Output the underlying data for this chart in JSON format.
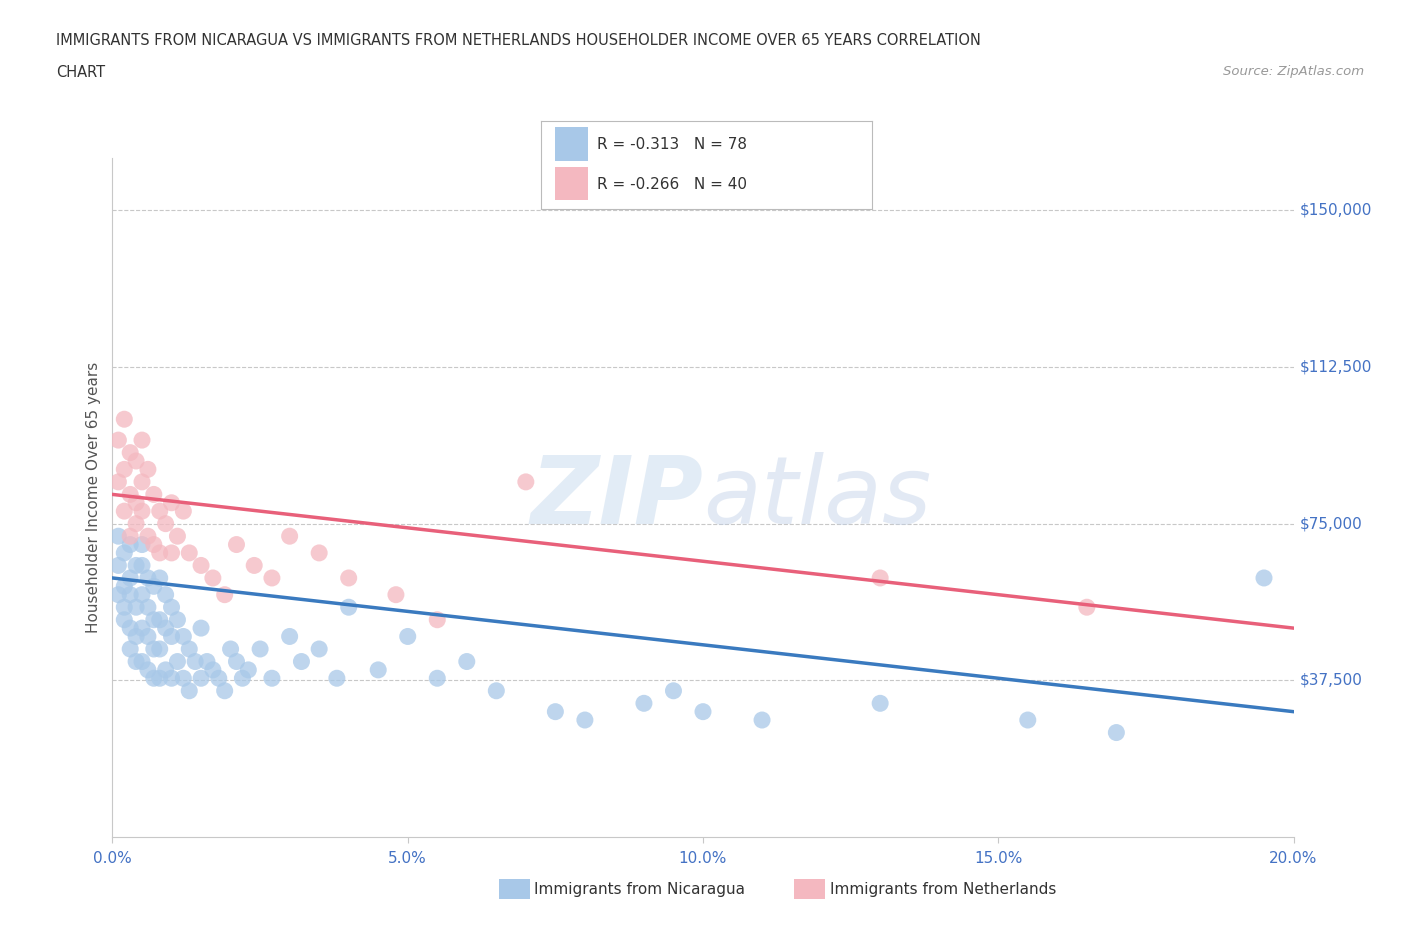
{
  "title_line1": "IMMIGRANTS FROM NICARAGUA VS IMMIGRANTS FROM NETHERLANDS HOUSEHOLDER INCOME OVER 65 YEARS CORRELATION",
  "title_line2": "CHART",
  "source_text": "Source: ZipAtlas.com",
  "ylabel": "Householder Income Over 65 years",
  "x_min": 0.0,
  "x_max": 0.2,
  "y_min": 0,
  "y_max": 162500,
  "y_ticks": [
    0,
    37500,
    75000,
    112500,
    150000
  ],
  "y_tick_labels": [
    "",
    "$37,500",
    "$75,000",
    "$112,500",
    "$150,000"
  ],
  "x_tick_labels": [
    "0.0%",
    "5.0%",
    "10.0%",
    "15.0%",
    "20.0%"
  ],
  "x_ticks": [
    0.0,
    0.05,
    0.1,
    0.15,
    0.2
  ],
  "nicaragua_color": "#a8c8e8",
  "netherlands_color": "#f4b8c0",
  "nicaragua_R": -0.313,
  "nicaragua_N": 78,
  "netherlands_R": -0.266,
  "netherlands_N": 40,
  "nicaragua_line_color": "#3a7abf",
  "netherlands_line_color": "#e8607a",
  "watermark": "ZIPatlas",
  "background_color": "#ffffff",
  "grid_color": "#c8c8c8",
  "tick_label_color": "#4472c4",
  "nicaragua_line_y0": 62000,
  "nicaragua_line_y1": 30000,
  "netherlands_line_y0": 82000,
  "netherlands_line_y1": 50000,
  "nicaragua_scatter_x": [
    0.001,
    0.001,
    0.001,
    0.002,
    0.002,
    0.002,
    0.002,
    0.003,
    0.003,
    0.003,
    0.003,
    0.003,
    0.004,
    0.004,
    0.004,
    0.004,
    0.005,
    0.005,
    0.005,
    0.005,
    0.005,
    0.006,
    0.006,
    0.006,
    0.006,
    0.007,
    0.007,
    0.007,
    0.007,
    0.008,
    0.008,
    0.008,
    0.008,
    0.009,
    0.009,
    0.009,
    0.01,
    0.01,
    0.01,
    0.011,
    0.011,
    0.012,
    0.012,
    0.013,
    0.013,
    0.014,
    0.015,
    0.015,
    0.016,
    0.017,
    0.018,
    0.019,
    0.02,
    0.021,
    0.022,
    0.023,
    0.025,
    0.027,
    0.03,
    0.032,
    0.035,
    0.038,
    0.04,
    0.045,
    0.05,
    0.055,
    0.06,
    0.065,
    0.075,
    0.08,
    0.09,
    0.095,
    0.1,
    0.11,
    0.13,
    0.155,
    0.17,
    0.195
  ],
  "nicaragua_scatter_y": [
    58000,
    65000,
    72000,
    52000,
    60000,
    68000,
    55000,
    50000,
    62000,
    70000,
    45000,
    58000,
    48000,
    55000,
    65000,
    42000,
    58000,
    50000,
    65000,
    42000,
    70000,
    55000,
    62000,
    48000,
    40000,
    52000,
    60000,
    45000,
    38000,
    52000,
    62000,
    45000,
    38000,
    50000,
    58000,
    40000,
    55000,
    48000,
    38000,
    52000,
    42000,
    48000,
    38000,
    45000,
    35000,
    42000,
    38000,
    50000,
    42000,
    40000,
    38000,
    35000,
    45000,
    42000,
    38000,
    40000,
    45000,
    38000,
    48000,
    42000,
    45000,
    38000,
    55000,
    40000,
    48000,
    38000,
    42000,
    35000,
    30000,
    28000,
    32000,
    35000,
    30000,
    28000,
    32000,
    28000,
    25000,
    62000
  ],
  "netherlands_scatter_x": [
    0.001,
    0.001,
    0.002,
    0.002,
    0.002,
    0.003,
    0.003,
    0.003,
    0.004,
    0.004,
    0.004,
    0.005,
    0.005,
    0.005,
    0.006,
    0.006,
    0.007,
    0.007,
    0.008,
    0.008,
    0.009,
    0.01,
    0.01,
    0.011,
    0.012,
    0.013,
    0.015,
    0.017,
    0.019,
    0.021,
    0.024,
    0.027,
    0.03,
    0.035,
    0.04,
    0.048,
    0.055,
    0.07,
    0.13,
    0.165
  ],
  "netherlands_scatter_y": [
    85000,
    95000,
    78000,
    88000,
    100000,
    82000,
    92000,
    72000,
    80000,
    90000,
    75000,
    85000,
    95000,
    78000,
    88000,
    72000,
    82000,
    70000,
    78000,
    68000,
    75000,
    80000,
    68000,
    72000,
    78000,
    68000,
    65000,
    62000,
    58000,
    70000,
    65000,
    62000,
    72000,
    68000,
    62000,
    58000,
    52000,
    85000,
    62000,
    55000
  ]
}
